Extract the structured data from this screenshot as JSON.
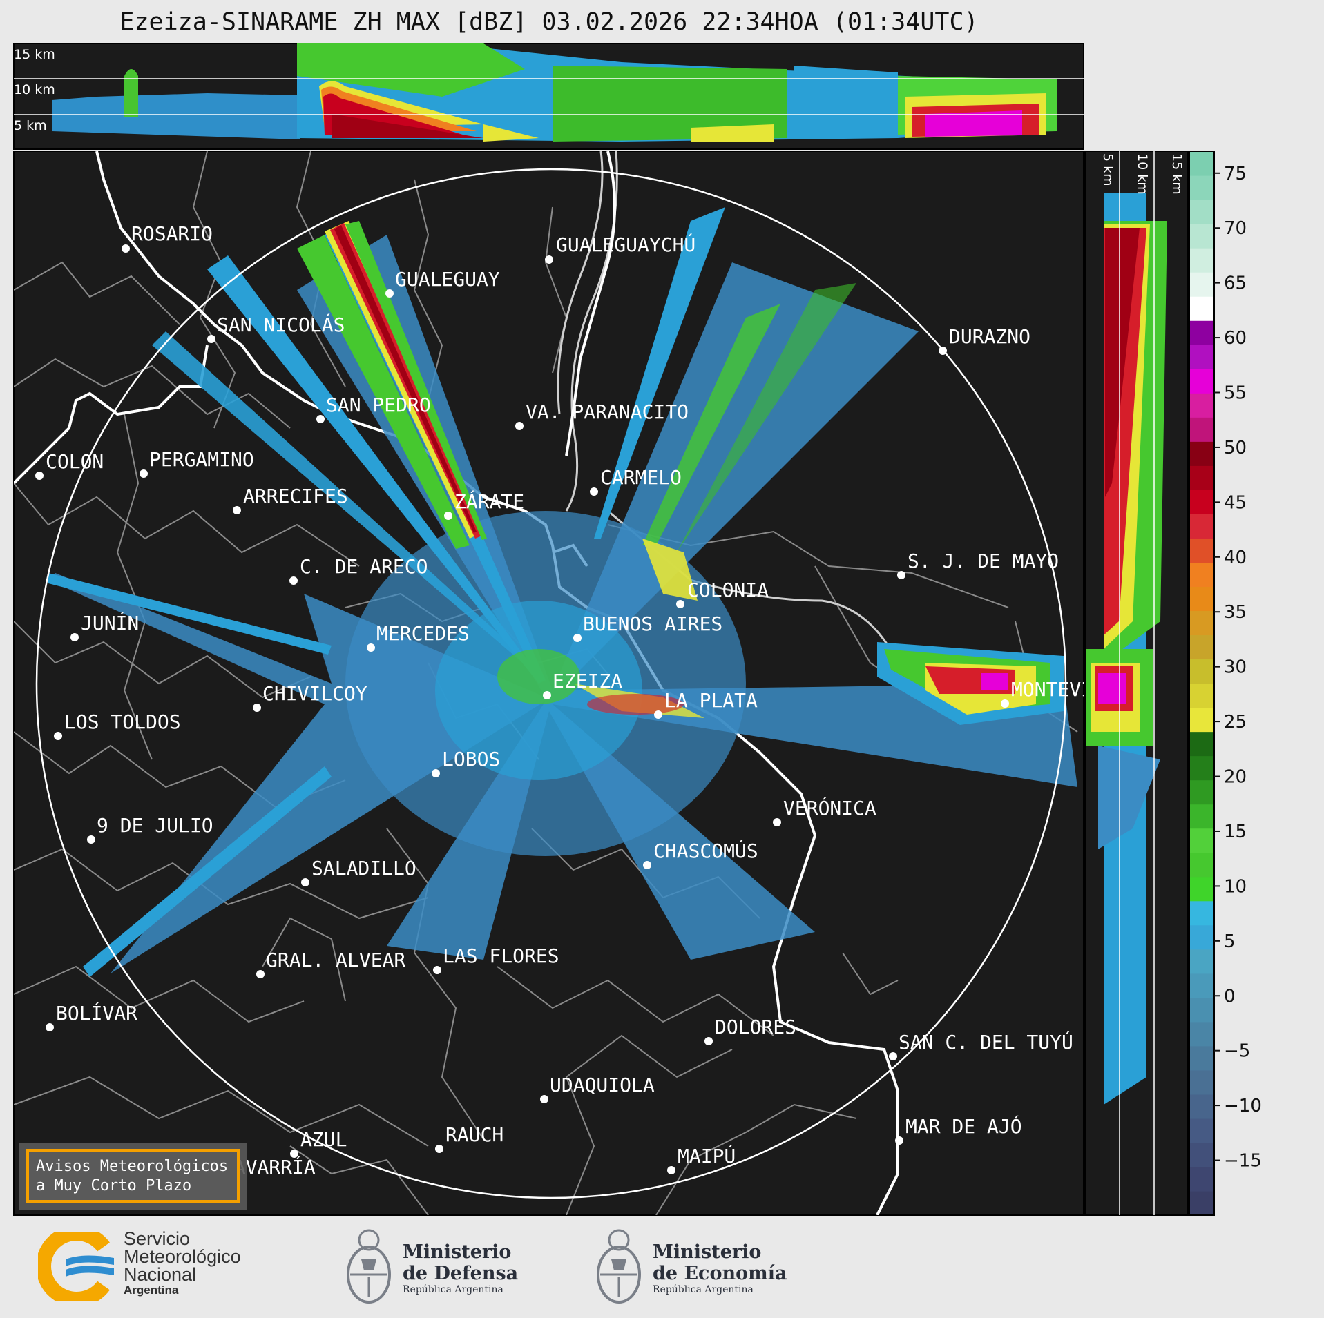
{
  "title": "Ezeiza-SINARAME ZH MAX [dBZ] 03.02.2026 22:34HOA (01:34UTC)",
  "top_panel": {
    "height_labels": [
      "15 km",
      "10 km",
      "5 km"
    ]
  },
  "right_panel": {
    "height_labels": [
      "5 km",
      "10 km",
      "15 km"
    ]
  },
  "colorbar": {
    "unit": "dBZ",
    "ticks": [
      "75",
      "70",
      "65",
      "60",
      "55",
      "50",
      "45",
      "40",
      "35",
      "30",
      "25",
      "20",
      "15",
      "10",
      "5",
      "0",
      "−5",
      "−10",
      "−15"
    ],
    "range": [
      -20,
      77
    ]
  },
  "radar_site": "EZEIZA",
  "cities": [
    "ROSARIO",
    "GUALEGUAYCHÚ",
    "GUALEGUAY",
    "SAN NICOLÁS",
    "DURAZNO",
    "SAN PEDRO",
    "VA. PARANACITO",
    "COLON",
    "PERGAMINO",
    "CARMELO",
    "ARRECIFES",
    "ZÁRATE",
    "S. J. DE MAYO",
    "C. DE ARECO",
    "COLONIA",
    "JUNÍN",
    "MERCEDES",
    "BUENOS AIRES",
    "EZEIZA",
    "MONTEVIDEO",
    "CHIVILCOY",
    "LA PLATA",
    "LOS TOLDOS",
    "LOBOS",
    "VERÓNICA",
    "9 DE JULIO",
    "CHASCOMÚS",
    "SALADILLO",
    "GRAL. ALVEAR",
    "LAS FLORES",
    "BOLÍVAR",
    "DOLORES",
    "SAN C. DEL TUYÚ",
    "UDAQUIOLA",
    "MAR DE AJÓ",
    "AZUL",
    "RAUCH",
    "OLAVARRÍA",
    "MAIPÚ"
  ],
  "warning_box": {
    "line1": "Avisos Meteorológicos",
    "line2": "a Muy Corto Plazo"
  },
  "logos": {
    "smn": {
      "line1": "Servicio",
      "line2": "Meteorológico",
      "line3": "Nacional",
      "line4": "Argentina"
    },
    "defensa": {
      "line1": "Ministerio",
      "line2": "de Defensa",
      "line3": "República Argentina"
    },
    "economia": {
      "line1": "Ministerio",
      "line2": "de Economía",
      "line3": "República Argentina"
    }
  },
  "colors": {
    "map_background": "#1b1b1b",
    "range_ring": "#ffffff",
    "coast": "#ffffff",
    "borders": "#8a8a8a",
    "warning_border": "#f5a000"
  }
}
